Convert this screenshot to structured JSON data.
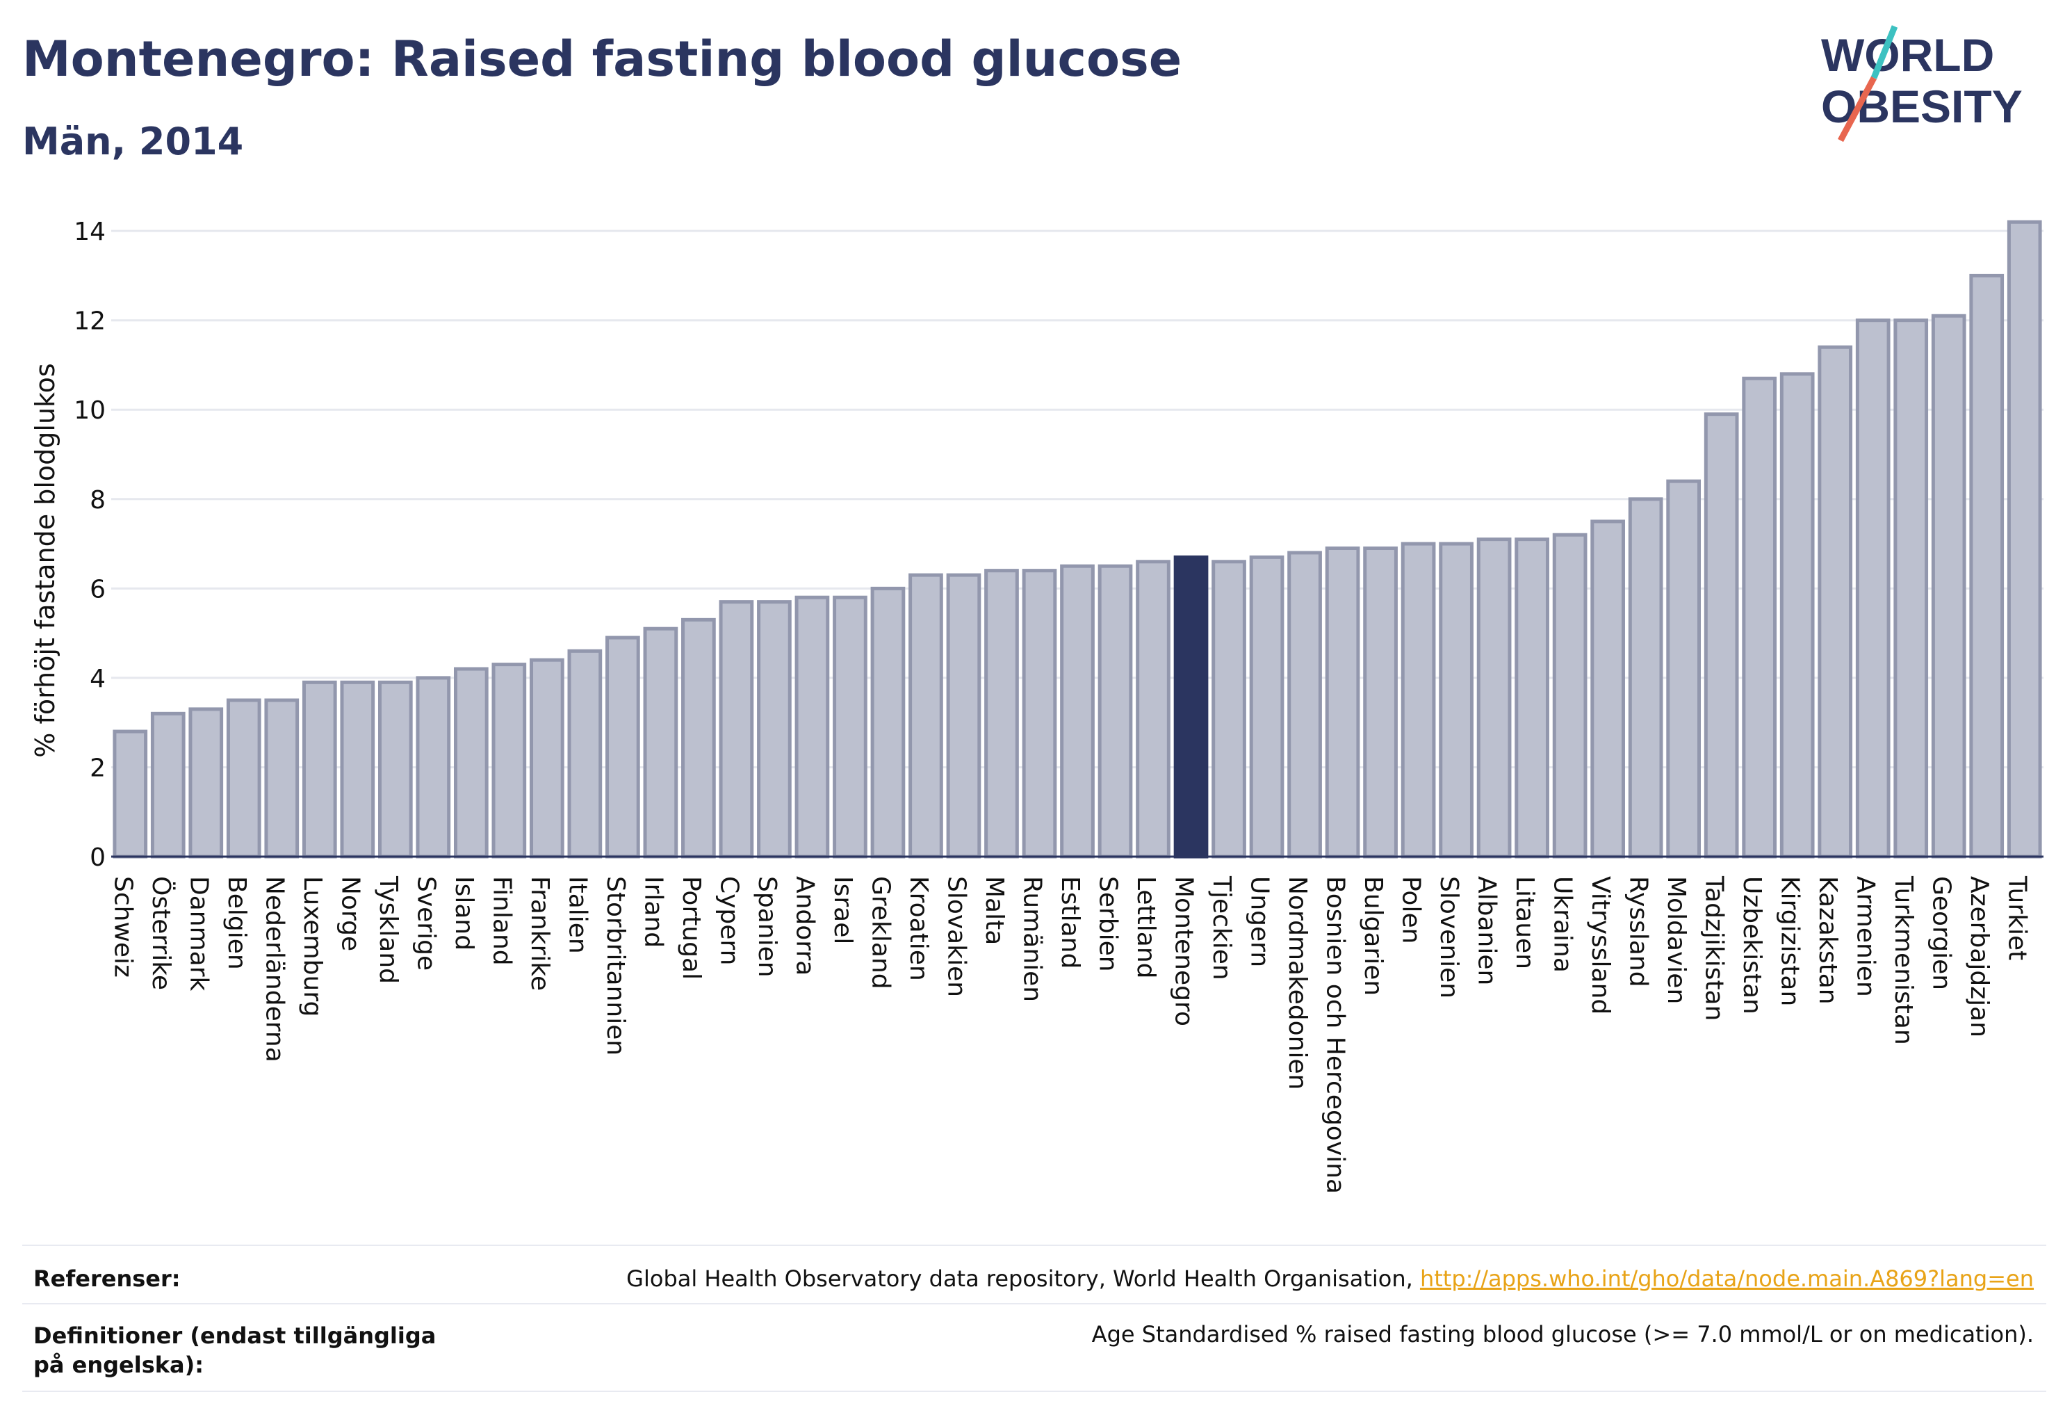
{
  "header": {
    "title": "Montenegro: Raised fasting blood glucose",
    "subtitle": "Män, 2014"
  },
  "logo": {
    "line1": "WORLD",
    "line2": "OBESITY"
  },
  "footer": {
    "references_label": "Referenser:",
    "references_text": "Global Health Observatory data repository, World Health Organisation, ",
    "references_link": "http://apps.who.int/gho/data/node.main.A869?lang=en",
    "definitions_label": "Definitioner (endast tillgängliga på engelska):",
    "definitions_text": "Age Standardised % raised fasting blood glucose (>= 7.0 mmol/L or on medication)."
  },
  "colors": {
    "bar": "#bcc0cf",
    "bar_edge": "#9297ad",
    "highlight": "#2b3560",
    "logo_teal": "#3cc1c1",
    "logo_coral": "#e8664f"
  },
  "chart_data": {
    "type": "bar",
    "title": "Montenegro: Raised fasting blood glucose",
    "subtitle": "Män, 2014",
    "ylabel": "% förhöjt fastande blodglukos",
    "xlabel": "",
    "ylim": [
      0,
      14.5
    ],
    "yticks": [
      0,
      2,
      4,
      6,
      8,
      10,
      12,
      14
    ],
    "grid": true,
    "highlight": "Montenegro",
    "categories": [
      "Schweiz",
      "Österrike",
      "Danmark",
      "Belgien",
      "Nederländerna",
      "Luxemburg",
      "Norge",
      "Tyskland",
      "Sverige",
      "Island",
      "Finland",
      "Frankrike",
      "Italien",
      "Storbritannien",
      "Irland",
      "Portugal",
      "Cypern",
      "Spanien",
      "Andorra",
      "Israel",
      "Grekland",
      "Kroatien",
      "Slovakien",
      "Malta",
      "Rumänien",
      "Estland",
      "Serbien",
      "Lettland",
      "Montenegro",
      "Tjeckien",
      "Ungern",
      "Nordmakedonien",
      "Bosnien och Hercegovina",
      "Bulgarien",
      "Polen",
      "Slovenien",
      "Albanien",
      "Litauen",
      "Ukraina",
      "Vitryssland",
      "Ryssland",
      "Moldavien",
      "Tadzjikistan",
      "Uzbekistan",
      "Kirgizistan",
      "Kazakstan",
      "Armenien",
      "Turkmenistan",
      "Georgien",
      "Azerbajdzjan",
      "Turkiet"
    ],
    "values": [
      2.8,
      3.2,
      3.3,
      3.5,
      3.5,
      3.9,
      3.9,
      3.9,
      4.0,
      4.2,
      4.3,
      4.4,
      4.6,
      4.9,
      5.1,
      5.3,
      5.7,
      5.7,
      5.8,
      5.8,
      6.0,
      6.3,
      6.3,
      6.4,
      6.4,
      6.5,
      6.5,
      6.6,
      6.7,
      6.6,
      6.7,
      6.8,
      6.9,
      6.9,
      7.0,
      7.0,
      7.1,
      7.1,
      7.2,
      7.5,
      8.0,
      8.4,
      9.9,
      10.7,
      10.8,
      11.4,
      12.0,
      12.0,
      12.1,
      13.0,
      14.2
    ]
  }
}
